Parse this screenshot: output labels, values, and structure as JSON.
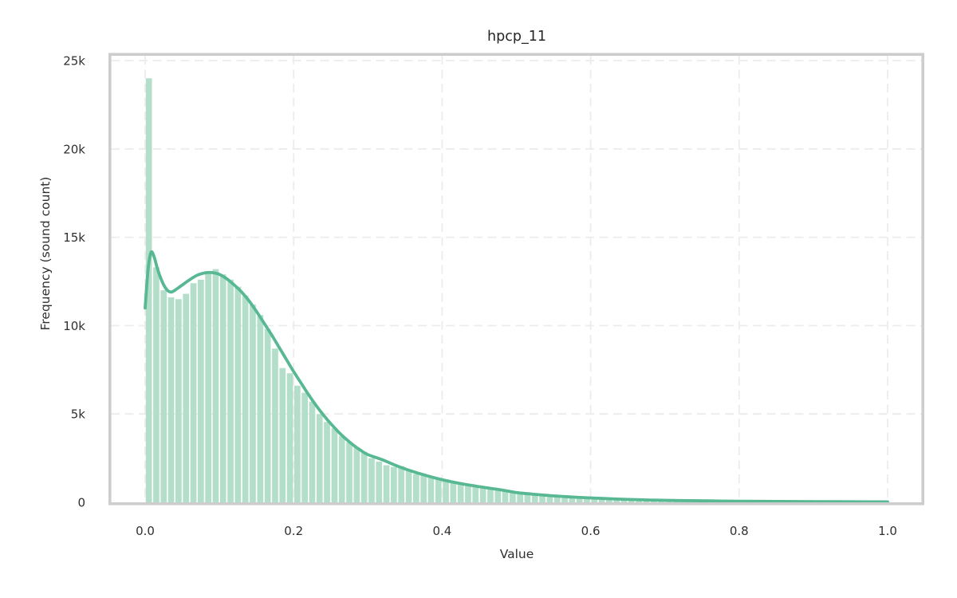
{
  "colors": {
    "bar_fill": "#b3dfca",
    "kde_line": "#57b893",
    "grid": "#ececec",
    "frame": "#cdcdcd",
    "text": "#303030",
    "title_text": "#262626",
    "background": "#ffffff"
  },
  "chart_data": {
    "type": "bar",
    "subtype": "histogram-with-kde",
    "title": "hpcp_11",
    "xlabel": "Value",
    "ylabel": "Frequency (sound count)",
    "xlim": [
      -0.05,
      1.05
    ],
    "ylim": [
      0,
      25000
    ],
    "grid": true,
    "legend": false,
    "x_ticks": [
      0.0,
      0.2,
      0.4,
      0.6,
      0.8,
      1.0
    ],
    "x_tick_labels": [
      "0.0",
      "0.2",
      "0.4",
      "0.6",
      "0.8",
      "1.0"
    ],
    "y_ticks": [
      0,
      5000,
      10000,
      15000,
      20000,
      25000
    ],
    "y_tick_labels": [
      "0",
      "5k",
      "10k",
      "15k",
      "20k",
      "25k"
    ],
    "bin_start": 0.0,
    "bin_width": 0.01,
    "bar_values": [
      24000,
      13300,
      12000,
      11600,
      11500,
      11800,
      12400,
      12600,
      13000,
      13200,
      12900,
      12600,
      12200,
      11700,
      11200,
      10600,
      9800,
      8700,
      7600,
      7300,
      6600,
      6200,
      5700,
      5000,
      4550,
      4200,
      3750,
      3400,
      3100,
      2850,
      2500,
      2300,
      2100,
      2000,
      2050,
      1850,
      1600,
      1550,
      1450,
      1350,
      1300,
      1150,
      1050,
      1000,
      900,
      850,
      800,
      750,
      700,
      650,
      600,
      550,
      500,
      480,
      450,
      420,
      400,
      380,
      350,
      330,
      300,
      280,
      260,
      240,
      220,
      210,
      200,
      180,
      170,
      160,
      150,
      140,
      130,
      120,
      110,
      110,
      100,
      90,
      90,
      80,
      80,
      70,
      70,
      60,
      60,
      50,
      50,
      50,
      40,
      40,
      40,
      30,
      30,
      30,
      30,
      20,
      20,
      20,
      20,
      50
    ],
    "kde_line": {
      "x": [
        0.0,
        0.004,
        0.008,
        0.012,
        0.016,
        0.02,
        0.025,
        0.03,
        0.035,
        0.04,
        0.05,
        0.06,
        0.07,
        0.08,
        0.09,
        0.1,
        0.11,
        0.12,
        0.13,
        0.14,
        0.15,
        0.16,
        0.17,
        0.18,
        0.19,
        0.2,
        0.21,
        0.22,
        0.23,
        0.24,
        0.25,
        0.26,
        0.27,
        0.28,
        0.29,
        0.3,
        0.32,
        0.34,
        0.36,
        0.38,
        0.4,
        0.42,
        0.44,
        0.46,
        0.48,
        0.5,
        0.52,
        0.54,
        0.56,
        0.58,
        0.6,
        0.64,
        0.68,
        0.72,
        0.76,
        0.8,
        0.85,
        0.9,
        0.95,
        1.0
      ],
      "y": [
        11000,
        13200,
        14150,
        13900,
        13300,
        12800,
        12300,
        12000,
        11900,
        12000,
        12300,
        12600,
        12850,
        12980,
        13000,
        12900,
        12650,
        12300,
        11900,
        11400,
        10800,
        10150,
        9500,
        8800,
        8100,
        7400,
        6750,
        6100,
        5500,
        4950,
        4450,
        4000,
        3600,
        3250,
        2950,
        2700,
        2400,
        2050,
        1750,
        1500,
        1280,
        1100,
        950,
        820,
        700,
        550,
        470,
        400,
        340,
        290,
        250,
        180,
        130,
        100,
        80,
        60,
        50,
        40,
        30,
        25
      ]
    }
  }
}
